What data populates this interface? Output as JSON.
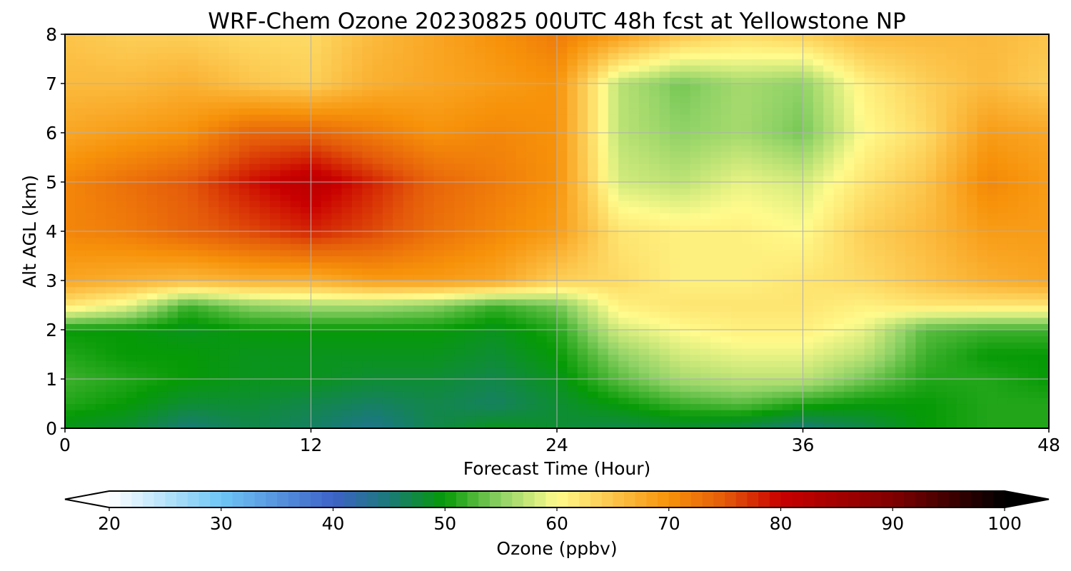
{
  "chart_data": {
    "type": "heatmap",
    "title": "WRF-Chem Ozone  20230825 00UTC 48h fcst at Yellowstone NP",
    "xlabel": "Forecast Time (Hour)",
    "ylabel": "Alt AGL (km)",
    "xlim": [
      0,
      48
    ],
    "ylim": [
      0,
      8
    ],
    "xticks": [
      0,
      12,
      24,
      36,
      48
    ],
    "yticks": [
      0,
      1,
      2,
      3,
      4,
      5,
      6,
      7,
      8
    ],
    "grid": true,
    "x": [
      0,
      3,
      6,
      9,
      12,
      15,
      18,
      21,
      24,
      27,
      30,
      33,
      36,
      39,
      42,
      45,
      48
    ],
    "y": [
      0,
      0.5,
      1,
      1.5,
      2,
      2.5,
      3,
      4,
      5,
      6,
      7,
      8
    ],
    "z": [
      [
        49,
        48,
        45,
        47,
        46,
        44,
        47,
        49,
        48,
        47,
        48,
        47,
        45,
        47,
        50,
        51,
        51
      ],
      [
        51,
        50,
        48,
        48,
        47,
        46,
        47,
        46,
        48,
        50,
        52,
        53,
        51,
        50,
        50,
        51,
        51
      ],
      [
        52,
        51,
        50,
        49,
        49,
        48,
        48,
        47,
        49,
        53,
        56,
        57,
        57,
        54,
        51,
        51,
        50
      ],
      [
        51,
        50,
        50,
        49,
        49,
        49,
        49,
        48,
        50,
        55,
        58,
        59,
        59,
        57,
        52,
        50,
        50
      ],
      [
        50,
        50,
        49,
        50,
        50,
        50,
        50,
        49,
        51,
        58,
        60,
        61,
        61,
        59,
        53,
        52,
        52
      ],
      [
        62,
        59,
        52,
        55,
        56,
        56,
        55,
        52,
        54,
        61,
        62,
        62,
        62,
        61,
        62,
        62,
        62
      ],
      [
        68,
        67,
        66,
        67,
        67,
        69,
        69,
        68,
        64,
        63,
        61,
        61,
        62,
        63,
        65,
        67,
        68
      ],
      [
        71,
        72,
        74,
        76,
        78,
        76,
        73,
        71,
        69,
        62,
        61,
        61,
        60,
        64,
        66,
        69,
        69
      ],
      [
        71,
        73,
        75,
        79,
        82,
        78,
        74,
        72,
        70,
        58,
        57,
        59,
        58,
        62,
        65,
        71,
        69
      ],
      [
        68,
        69,
        70,
        74,
        74,
        72,
        70,
        71,
        70,
        57,
        55,
        56,
        54,
        60,
        63,
        69,
        68
      ],
      [
        66,
        66,
        67,
        65,
        64,
        67,
        68,
        69,
        70,
        57,
        54,
        56,
        55,
        61,
        64,
        66,
        64
      ],
      [
        65,
        64,
        64,
        63,
        63,
        66,
        68,
        70,
        72,
        69,
        65,
        63,
        64,
        66,
        66,
        66,
        65
      ]
    ],
    "colorbar": {
      "label": "Ozone  (ppbv)",
      "min": 20,
      "max": 100,
      "extend": "both",
      "ticks": [
        20,
        30,
        40,
        50,
        60,
        70,
        80,
        90,
        100
      ],
      "stops": [
        {
          "value": 20,
          "color": "#ffffff"
        },
        {
          "value": 30,
          "color": "#6ec6f5"
        },
        {
          "value": 40,
          "color": "#3e62c8"
        },
        {
          "value": 45,
          "color": "#1a7a78"
        },
        {
          "value": 50,
          "color": "#069a06"
        },
        {
          "value": 55,
          "color": "#90d266"
        },
        {
          "value": 60,
          "color": "#fffb8c"
        },
        {
          "value": 65,
          "color": "#fcc44a"
        },
        {
          "value": 70,
          "color": "#f7920a"
        },
        {
          "value": 75,
          "color": "#e45a0a"
        },
        {
          "value": 80,
          "color": "#c90000"
        },
        {
          "value": 90,
          "color": "#800000"
        },
        {
          "value": 100,
          "color": "#000000"
        }
      ]
    }
  }
}
